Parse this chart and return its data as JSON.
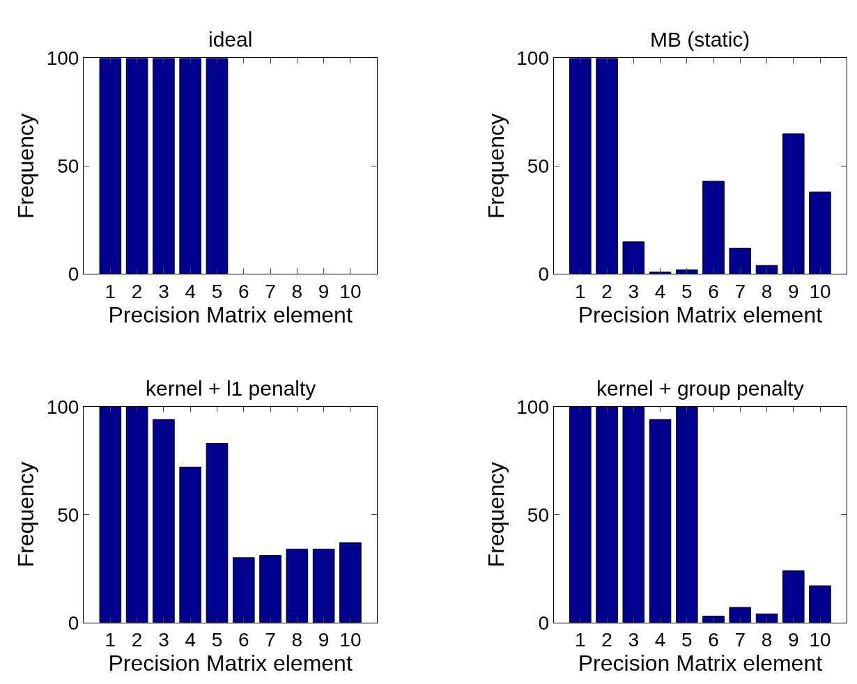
{
  "chart_data": [
    {
      "type": "bar",
      "title": "ideal",
      "xlabel": "Precision Matrix element",
      "ylabel": "Frequency",
      "x": [
        1,
        2,
        3,
        4,
        5,
        6,
        7,
        8,
        9,
        10
      ],
      "values": [
        100,
        100,
        100,
        100,
        100,
        0,
        0,
        0,
        0,
        0
      ],
      "color": "#00008f",
      "xlim": [
        0,
        11
      ],
      "xticks": [
        1,
        2,
        3,
        4,
        5,
        6,
        7,
        8,
        9,
        10
      ],
      "ylim": [
        0,
        100
      ],
      "yticks": [
        0,
        50,
        100
      ],
      "grid": false
    },
    {
      "type": "bar",
      "title": "MB (static)",
      "xlabel": "Precision Matrix element",
      "ylabel": "Frequency",
      "x": [
        1,
        2,
        3,
        4,
        5,
        6,
        7,
        8,
        9,
        10
      ],
      "values": [
        100,
        100,
        15,
        1,
        2,
        43,
        12,
        4,
        65,
        38
      ],
      "color": "#00008f",
      "xlim": [
        0,
        11
      ],
      "xticks": [
        1,
        2,
        3,
        4,
        5,
        6,
        7,
        8,
        9,
        10
      ],
      "ylim": [
        0,
        100
      ],
      "yticks": [
        0,
        50,
        100
      ],
      "grid": false
    },
    {
      "type": "bar",
      "title": "kernel + l1 penalty",
      "xlabel": "Precision Matrix element",
      "ylabel": "Frequency",
      "x": [
        1,
        2,
        3,
        4,
        5,
        6,
        7,
        8,
        9,
        10
      ],
      "values": [
        100,
        100,
        94,
        72,
        83,
        30,
        31,
        34,
        34,
        37
      ],
      "color": "#00008f",
      "xlim": [
        0,
        11
      ],
      "xticks": [
        1,
        2,
        3,
        4,
        5,
        6,
        7,
        8,
        9,
        10
      ],
      "ylim": [
        0,
        100
      ],
      "yticks": [
        0,
        50,
        100
      ],
      "grid": false
    },
    {
      "type": "bar",
      "title": "kernel + group penalty",
      "xlabel": "Precision Matrix element",
      "ylabel": "Frequency",
      "x": [
        1,
        2,
        3,
        4,
        5,
        6,
        7,
        8,
        9,
        10
      ],
      "values": [
        100,
        100,
        100,
        94,
        100,
        3,
        7,
        4,
        24,
        17
      ],
      "color": "#00008f",
      "xlim": [
        0,
        11
      ],
      "xticks": [
        1,
        2,
        3,
        4,
        5,
        6,
        7,
        8,
        9,
        10
      ],
      "ylim": [
        0,
        100
      ],
      "yticks": [
        0,
        50,
        100
      ],
      "grid": false
    }
  ]
}
